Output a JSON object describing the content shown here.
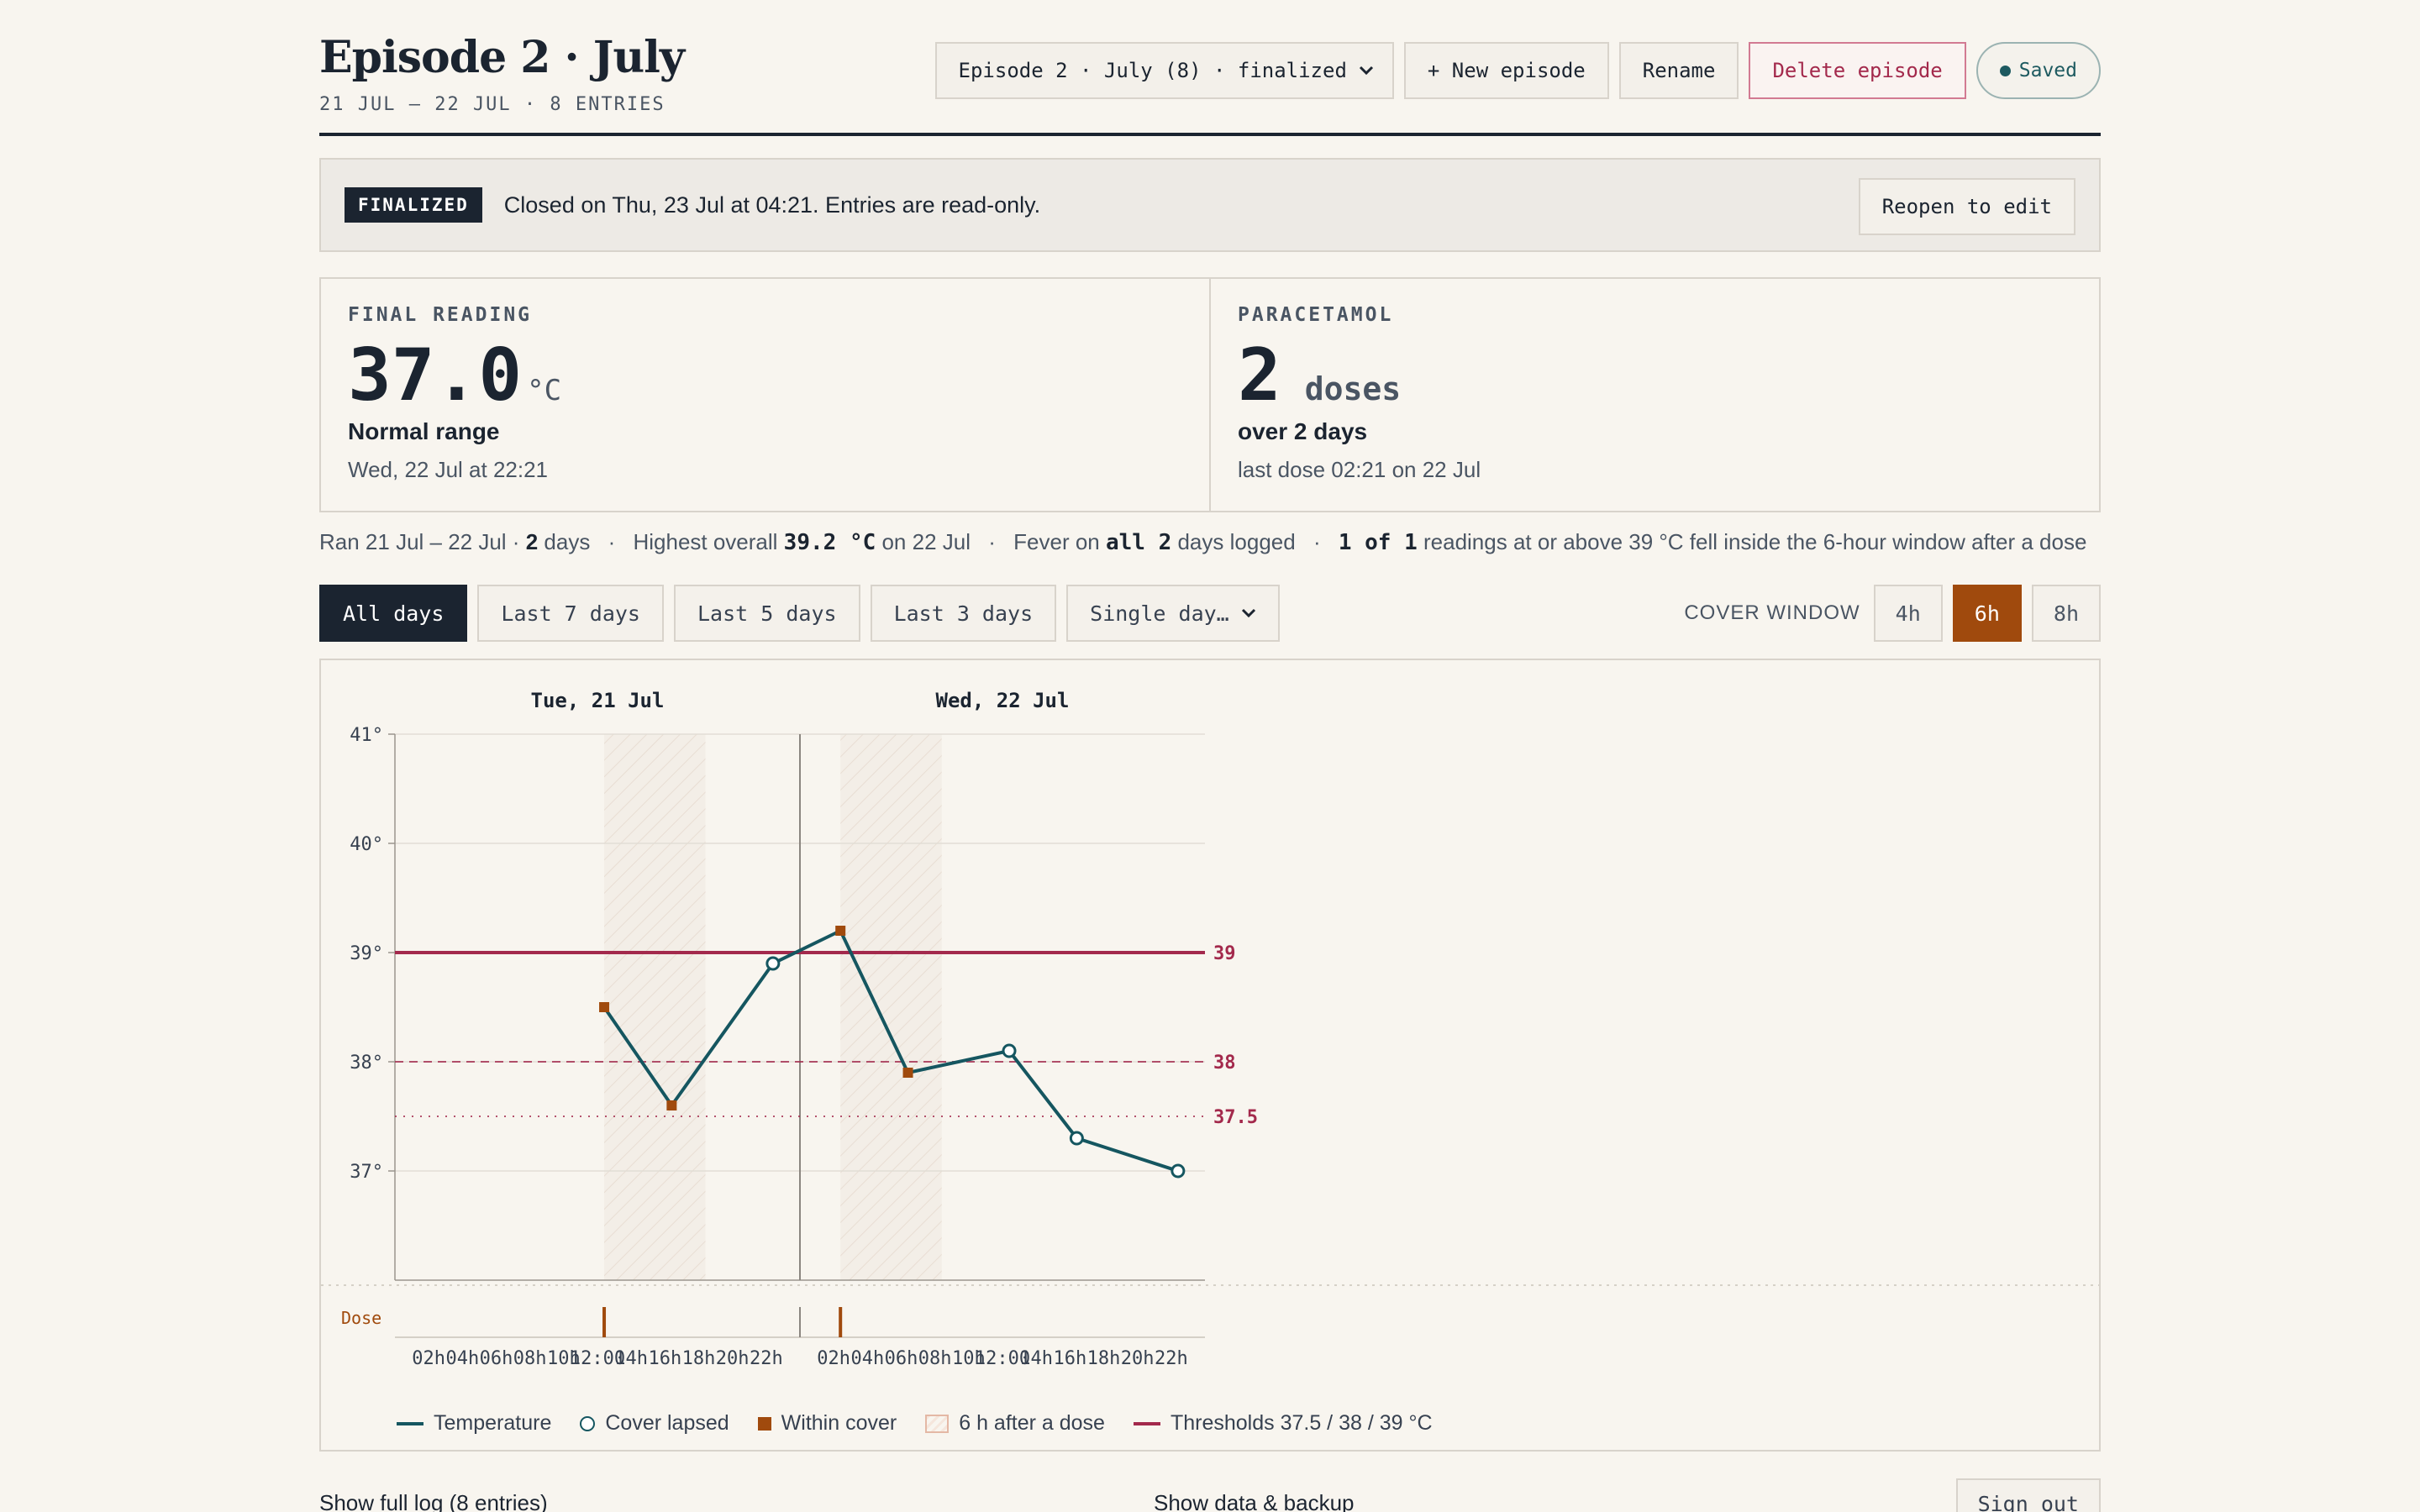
{
  "header": {
    "title": "Episode 2 · July",
    "subtitle": "21 JUL – 22 JUL · 8 ENTRIES",
    "episode_select": "Episode 2 · July (8) · finalized",
    "new_episode": "+ New episode",
    "rename": "Rename",
    "delete": "Delete episode",
    "saved": "Saved"
  },
  "banner": {
    "badge": "FINALIZED",
    "text": "Closed on Thu, 23 Jul at 04:21. Entries are read-only.",
    "reopen": "Reopen to edit"
  },
  "cards": {
    "reading": {
      "label": "FINAL READING",
      "value": "37.0",
      "unit": "°C",
      "status": "Normal range",
      "when": "Wed, 22 Jul at 22:21"
    },
    "paracetamol": {
      "label": "PARACETAMOL",
      "value": "2",
      "unit": "doses",
      "span": "over 2 days",
      "last": "last dose 02:21 on 22 Jul"
    }
  },
  "summary": {
    "ran_prefix": "Ran 21 Jul – 22 Jul · ",
    "ran_days": "2",
    "ran_suffix": " days",
    "highest_prefix": "Highest overall ",
    "highest_value": "39.2 °C",
    "highest_suffix": " on 22 Jul",
    "fever_prefix": "Fever on ",
    "fever_value": "all 2",
    "fever_suffix": " days logged",
    "readings_value": "1 of 1",
    "readings_suffix": " readings at or above 39 °C fell inside the 6-hour window after a dose"
  },
  "filters": {
    "all_days": "All days",
    "last7": "Last 7 days",
    "last5": "Last 5 days",
    "last3": "Last 3 days",
    "single_day": "Single day…",
    "cover_label": "COVER WINDOW",
    "cover_options": [
      "4h",
      "6h",
      "8h"
    ],
    "cover_selected": "6h"
  },
  "chart_data": {
    "type": "line",
    "day_labels": [
      "Tue, 21 Jul",
      "Wed, 22 Jul"
    ],
    "y_ticks": [
      "41°",
      "40°",
      "39°",
      "38°",
      "37°"
    ],
    "ylim": [
      36.0,
      41.0
    ],
    "x_tick_labels": [
      "02h",
      "04h",
      "06h",
      "08h",
      "10h",
      "12:00",
      "14h",
      "16h",
      "18h",
      "20h",
      "22h",
      "02h",
      "04h",
      "06h",
      "08h",
      "10h",
      "12:00",
      "14h",
      "16h",
      "18h",
      "20h",
      "22h"
    ],
    "thresholds": [
      {
        "value": 39,
        "label": "39",
        "style": "solid"
      },
      {
        "value": 38,
        "label": "38",
        "style": "dashed"
      },
      {
        "value": 37.5,
        "label": "37.5",
        "style": "dotted"
      }
    ],
    "series": [
      {
        "name": "Temperature",
        "points": [
          {
            "day": 0,
            "hour": 12.4,
            "temp": 38.5,
            "within_cover": true
          },
          {
            "day": 0,
            "hour": 16.4,
            "temp": 37.6,
            "within_cover": true
          },
          {
            "day": 0,
            "hour": 22.4,
            "temp": 38.9,
            "within_cover": false
          },
          {
            "day": 1,
            "hour": 2.4,
            "temp": 39.2,
            "within_cover": true
          },
          {
            "day": 1,
            "hour": 6.4,
            "temp": 37.9,
            "within_cover": true
          },
          {
            "day": 1,
            "hour": 12.4,
            "temp": 38.1,
            "within_cover": false
          },
          {
            "day": 1,
            "hour": 16.4,
            "temp": 37.3,
            "within_cover": false
          },
          {
            "day": 1,
            "hour": 22.4,
            "temp": 37.0,
            "within_cover": false
          }
        ]
      }
    ],
    "doses": [
      {
        "day": 0,
        "hour": 12.4
      },
      {
        "day": 1,
        "hour": 2.4
      }
    ],
    "dose_row_label": "Dose",
    "cover_hours": 6,
    "colors": {
      "line": "#155660",
      "within": "#a04a0d",
      "threshold": "#a3294c",
      "hatch": "#e8ddd3"
    }
  },
  "legend": {
    "temperature": "Temperature",
    "cover_lapsed": "Cover lapsed",
    "within_cover": "Within cover",
    "after_dose": "6 h after a dose",
    "thresholds": "Thresholds 37.5 / 38 / 39 °C"
  },
  "footer": {
    "log": "Show full log (8 entries)",
    "backup": "Show data & backup",
    "signout": "Sign out"
  }
}
